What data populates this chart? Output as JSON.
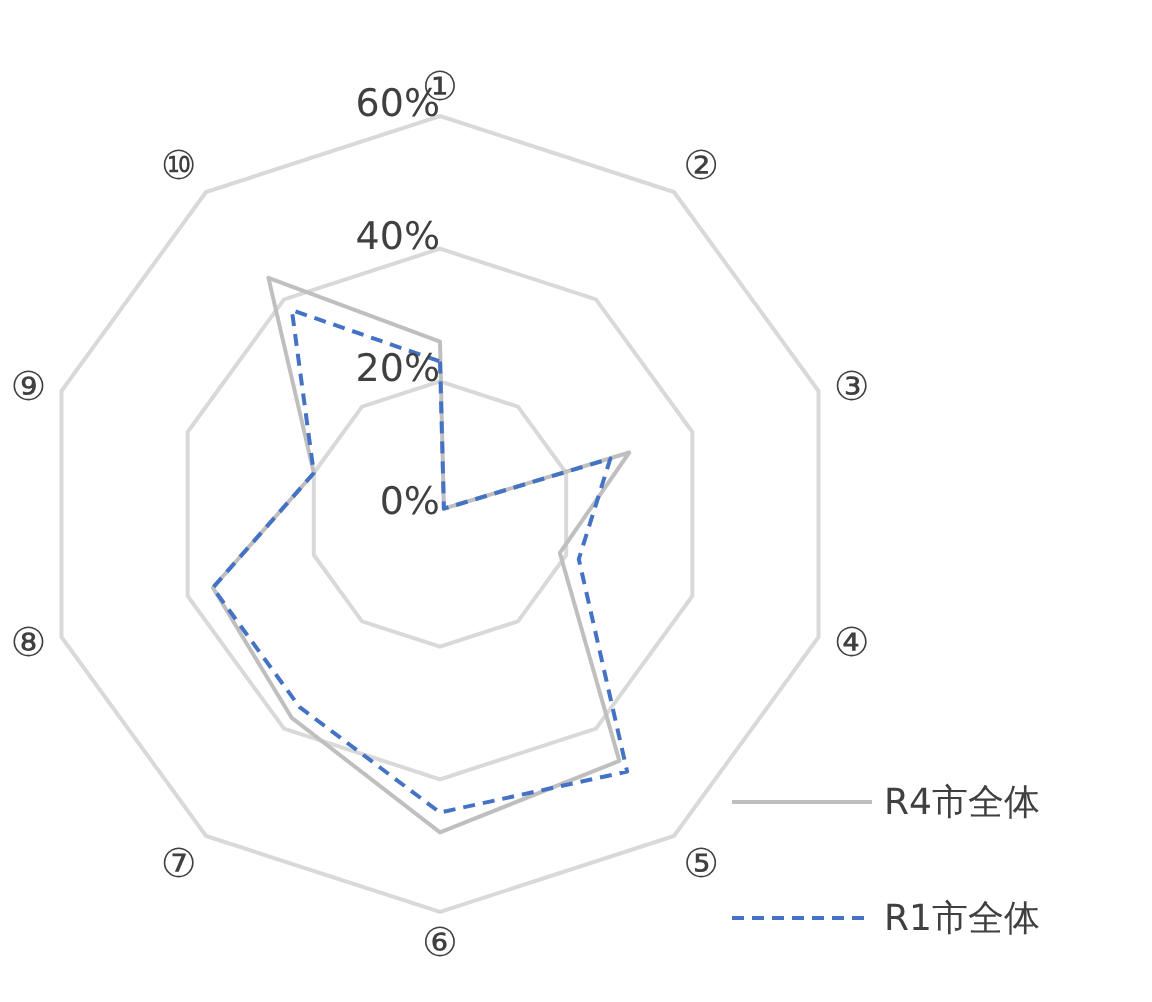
{
  "chart_data": {
    "type": "radar",
    "categories": [
      "①",
      "②",
      "③",
      "④",
      "⑤",
      "⑥",
      "⑦",
      "⑧",
      "⑨",
      "⑩"
    ],
    "series": [
      {
        "name": "R4市全体",
        "color": "#bfbfbf",
        "line_style": "solid",
        "values": [
          26,
          1,
          30,
          19,
          46,
          48,
          38,
          36,
          20,
          44
        ]
      },
      {
        "name": "R1市全体",
        "color": "#4472c4",
        "line_style": "dashed",
        "values": [
          23,
          1,
          27,
          22,
          48,
          45,
          36,
          36,
          20,
          38
        ]
      }
    ],
    "ylim": [
      0,
      60
    ],
    "yticks": [
      {
        "value": 0,
        "label": "0%"
      },
      {
        "value": 20,
        "label": "20%"
      },
      {
        "value": 40,
        "label": "40%"
      },
      {
        "value": 60,
        "label": "60%"
      }
    ],
    "grid": true,
    "legend": "bottom right",
    "marker": "none"
  }
}
